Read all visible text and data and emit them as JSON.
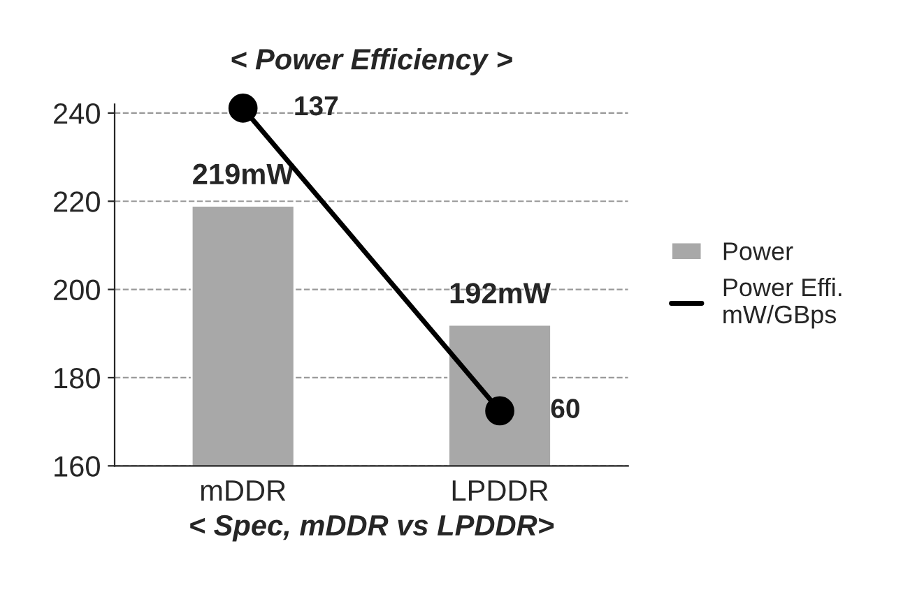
{
  "chart_data": {
    "type": "bar",
    "title": "< Power Efficiency >",
    "xlabel": "< Spec, mDDR vs LPDDR>",
    "categories": [
      "mDDR",
      "LPDDR"
    ],
    "series": [
      {
        "name": "Power",
        "color": "#a8a8a8",
        "values": [
          219,
          192
        ],
        "value_labels": [
          "219mW",
          "192mW"
        ]
      },
      {
        "name": "Power Effi.\nmW/GBps",
        "type": "line",
        "axis": "y2",
        "color": "#000000",
        "values": [
          137,
          60
        ],
        "value_labels": [
          "137",
          "60"
        ],
        "marker": "circle"
      }
    ],
    "ylim": [
      160,
      242
    ],
    "yticks": [
      160,
      180,
      200,
      220,
      240
    ],
    "y2lim": [
      46,
      138
    ],
    "grid": "y",
    "legend": "right"
  }
}
